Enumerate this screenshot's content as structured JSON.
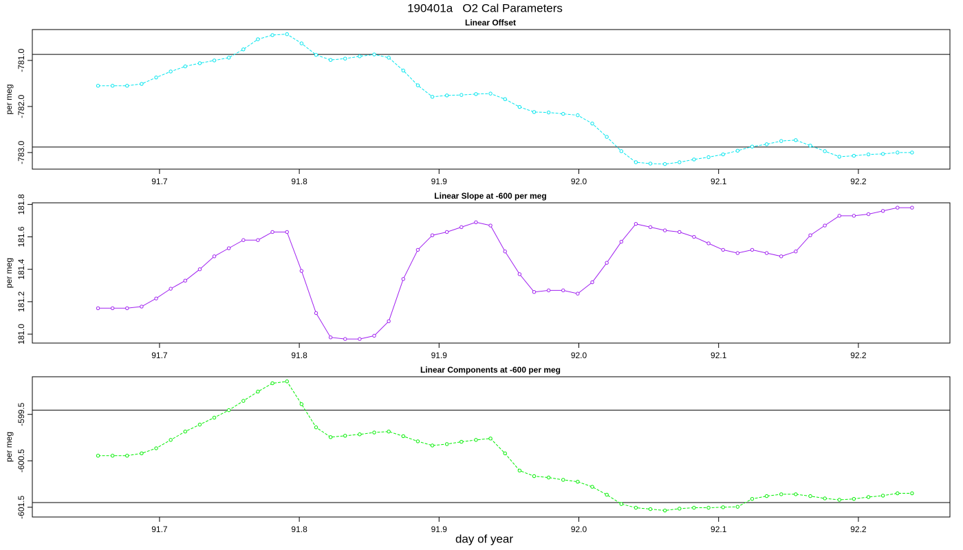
{
  "title": "190401a   O2 Cal Parameters",
  "chart_data": [
    {
      "type": "line",
      "title": "Linear Offset",
      "ylabel": "per meg",
      "color": "#00e5ee",
      "dashed": true,
      "x": [
        91.656,
        91.6664,
        91.6768,
        91.6872,
        91.6976,
        91.708,
        91.7184,
        91.7288,
        91.7392,
        91.7496,
        91.76,
        91.7704,
        91.7808,
        91.7912,
        91.8016,
        91.812,
        91.8224,
        91.8328,
        91.8432,
        91.8536,
        91.864,
        91.8744,
        91.8848,
        91.8952,
        91.9056,
        91.916,
        91.9264,
        91.9368,
        91.9472,
        91.9576,
        91.968,
        91.9784,
        91.9888,
        91.9992,
        92.0096,
        92.02,
        92.0304,
        92.0408,
        92.0512,
        92.0616,
        92.072,
        92.0824,
        92.0928,
        92.1032,
        92.1136,
        92.124,
        92.1344,
        92.1448,
        92.1552,
        92.1656,
        92.176,
        92.1864,
        92.1968,
        92.2072,
        92.2176,
        92.228,
        92.2384
      ],
      "values": [
        -781.55,
        -781.55,
        -781.55,
        -781.51,
        -781.37,
        -781.24,
        -781.13,
        -781.06,
        -781.0,
        -780.94,
        -780.76,
        -780.54,
        -780.45,
        -780.43,
        -780.63,
        -780.88,
        -780.99,
        -780.96,
        -780.91,
        -780.87,
        -780.94,
        -781.22,
        -781.54,
        -781.79,
        -781.76,
        -781.75,
        -781.73,
        -781.72,
        -781.84,
        -782.01,
        -782.12,
        -782.13,
        -782.16,
        -782.19,
        -782.37,
        -782.66,
        -782.97,
        -783.21,
        -783.24,
        -783.25,
        -783.21,
        -783.15,
        -783.1,
        -783.04,
        -782.96,
        -782.87,
        -782.82,
        -782.75,
        -782.73,
        -782.85,
        -782.97,
        -783.09,
        -783.07,
        -783.04,
        -783.03,
        -783.0,
        -783.0
      ],
      "xlim": [
        91.609,
        92.2655
      ],
      "ylim": [
        -783.36,
        -780.33
      ],
      "xticks": [
        91.7,
        91.8,
        91.9,
        {
          "value": 92,
          "label": "92.0"
        },
        92.1,
        92.2
      ],
      "yticks": [
        {
          "value": -781,
          "label": "-781.0"
        },
        {
          "value": -782,
          "label": "-782.0"
        },
        {
          "value": -783,
          "label": "-783.0"
        }
      ],
      "hlines": [
        -780.87,
        -782.88
      ]
    },
    {
      "type": "line",
      "title": "Linear Slope at -600 per meg",
      "ylabel": "per meg",
      "color": "#a020f0",
      "dashed": false,
      "x": [
        91.656,
        91.6664,
        91.6768,
        91.6872,
        91.6976,
        91.708,
        91.7184,
        91.7288,
        91.7392,
        91.7496,
        91.76,
        91.7704,
        91.7808,
        91.7912,
        91.8016,
        91.812,
        91.8224,
        91.8328,
        91.8432,
        91.8536,
        91.864,
        91.8744,
        91.8848,
        91.8952,
        91.9056,
        91.916,
        91.9264,
        91.9368,
        91.9472,
        91.9576,
        91.968,
        91.9784,
        91.9888,
        91.9992,
        92.0096,
        92.02,
        92.0304,
        92.0408,
        92.0512,
        92.0616,
        92.072,
        92.0824,
        92.0928,
        92.1032,
        92.1136,
        92.124,
        92.1344,
        92.1448,
        92.1552,
        92.1656,
        92.176,
        92.1864,
        92.1968,
        92.2072,
        92.2176,
        92.228,
        92.2384
      ],
      "values": [
        181.16,
        181.16,
        181.16,
        181.17,
        181.22,
        181.28,
        181.33,
        181.4,
        181.48,
        181.53,
        181.58,
        181.58,
        181.63,
        181.63,
        181.39,
        181.13,
        180.98,
        180.97,
        180.97,
        180.99,
        181.08,
        181.34,
        181.52,
        181.61,
        181.63,
        181.66,
        181.69,
        181.67,
        181.51,
        181.37,
        181.26,
        181.27,
        181.27,
        181.25,
        181.32,
        181.44,
        181.57,
        181.68,
        181.66,
        181.64,
        181.63,
        181.6,
        181.56,
        181.52,
        181.5,
        181.52,
        181.5,
        181.48,
        181.51,
        181.61,
        181.67,
        181.73,
        181.73,
        181.74,
        181.76,
        181.78,
        181.78
      ],
      "xlim": [
        91.609,
        92.2655
      ],
      "ylim": [
        180.945,
        181.81
      ],
      "xticks": [
        91.7,
        91.8,
        91.9,
        {
          "value": 92,
          "label": "92.0"
        },
        92.1,
        92.2
      ],
      "yticks": [
        {
          "value": 181,
          "label": "181.0"
        },
        181.2,
        181.4,
        181.6,
        181.8
      ],
      "hlines": []
    },
    {
      "type": "line",
      "title": "Linear Components at -600 per meg",
      "ylabel": "per meg",
      "xlabel": "day of year",
      "color": "#00ee00",
      "dashed": true,
      "x": [
        91.656,
        91.6664,
        91.6768,
        91.6872,
        91.6976,
        91.708,
        91.7184,
        91.7288,
        91.7392,
        91.7496,
        91.76,
        91.7704,
        91.7808,
        91.7912,
        91.8016,
        91.812,
        91.8224,
        91.8328,
        91.8432,
        91.8536,
        91.864,
        91.8744,
        91.8848,
        91.8952,
        91.9056,
        91.916,
        91.9264,
        91.9368,
        91.9472,
        91.9576,
        91.968,
        91.9784,
        91.9888,
        91.9992,
        92.0096,
        92.02,
        92.0304,
        92.0408,
        92.0512,
        92.0616,
        92.072,
        92.0824,
        92.0928,
        92.1032,
        92.1136,
        92.124,
        92.1344,
        92.1448,
        92.1552,
        92.1656,
        92.176,
        92.1864,
        92.1968,
        92.2072,
        92.2176,
        92.228,
        92.2384
      ],
      "values": [
        -600.39,
        -600.39,
        -600.39,
        -600.34,
        -600.23,
        -600.05,
        -599.87,
        -599.72,
        -599.57,
        -599.41,
        -599.21,
        -599.01,
        -598.83,
        -598.79,
        -599.28,
        -599.78,
        -599.99,
        -599.96,
        -599.93,
        -599.89,
        -599.87,
        -599.97,
        -600.08,
        -600.17,
        -600.14,
        -600.09,
        -600.05,
        -600.02,
        -600.34,
        -600.71,
        -600.83,
        -600.86,
        -600.91,
        -600.95,
        -601.06,
        -601.23,
        -601.43,
        -601.51,
        -601.54,
        -601.57,
        -601.53,
        -601.51,
        -601.51,
        -601.5,
        -601.49,
        -601.32,
        -601.26,
        -601.22,
        -601.22,
        -601.26,
        -601.31,
        -601.34,
        -601.32,
        -601.28,
        -601.25,
        -601.2,
        -601.2
      ],
      "xlim": [
        91.609,
        92.2655
      ],
      "ylim": [
        -601.71,
        -598.69
      ],
      "xticks": [
        91.7,
        91.8,
        91.9,
        {
          "value": 92,
          "label": "92.0"
        },
        92.1,
        92.2
      ],
      "yticks": [
        {
          "value": -599.5,
          "label": "-599.5"
        },
        {
          "value": -600.5,
          "label": "-600.5"
        },
        {
          "value": -601.5,
          "label": "-601.5"
        }
      ],
      "hlines": [
        -599.41,
        -601.4
      ]
    }
  ]
}
